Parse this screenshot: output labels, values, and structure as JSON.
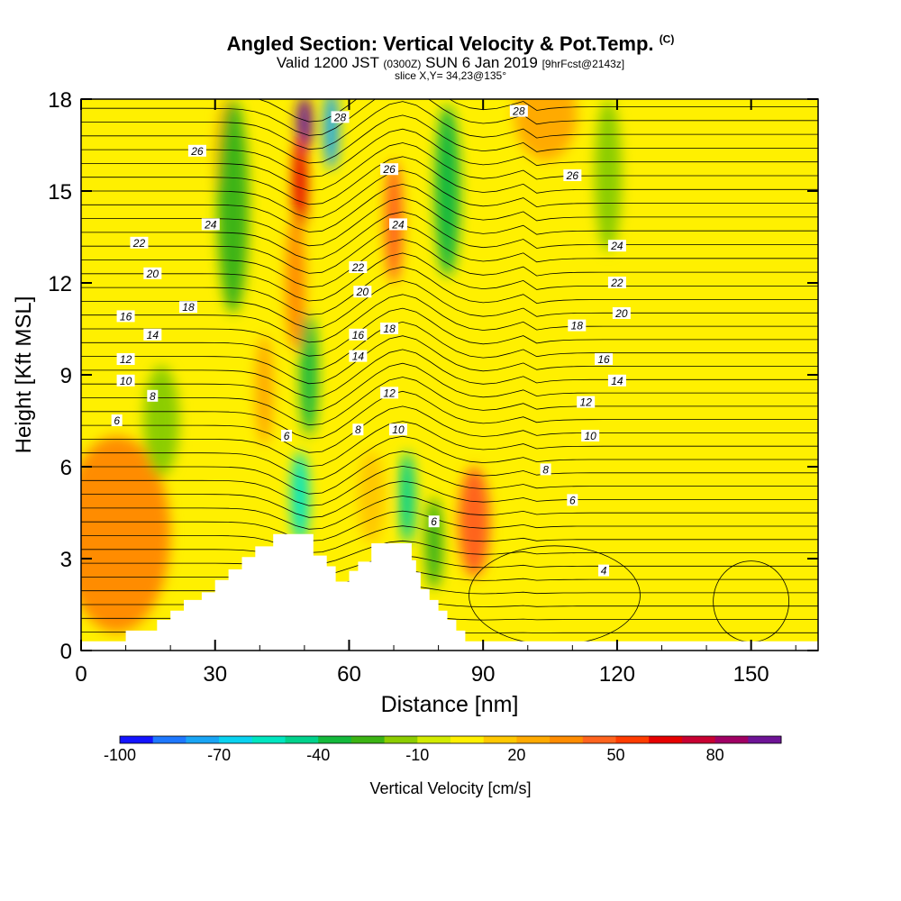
{
  "header": {
    "title": "Angled Section: Vertical Velocity & Pot.Temp.",
    "title_mark": "(C)",
    "valid_main": "Valid 1200 JST",
    "valid_zulu": "(0300Z)",
    "valid_date": "SUN 6 Jan 2019",
    "valid_fcst": "[9hrFcst@2143z]",
    "slice": "slice X,Y= 34,23@135°"
  },
  "chart_data": {
    "type": "heatmap",
    "xlabel": "Distance [nm]",
    "ylabel": "Height [Kft MSL]",
    "xlim": [
      0,
      165
    ],
    "ylim": [
      0,
      18
    ],
    "x_ticks": [
      0,
      30,
      60,
      90,
      120,
      150
    ],
    "y_ticks": [
      0,
      3,
      6,
      9,
      12,
      15,
      18
    ],
    "colorbar": {
      "label": "Vertical Velocity [cm/s]",
      "tick_labels": [
        "-100",
        "-70",
        "-40",
        "-10",
        "20",
        "50",
        "80"
      ],
      "tick_values": [
        -100,
        -70,
        -40,
        -10,
        20,
        50,
        80
      ],
      "colors": [
        "#1414ff",
        "#1e78ff",
        "#19a5f5",
        "#0ad2f0",
        "#00e6c0",
        "#00d28c",
        "#14b93c",
        "#3cb414",
        "#8ccd00",
        "#d2eb00",
        "#fff000",
        "#ffc800",
        "#ffaa00",
        "#ff8c00",
        "#ff641e",
        "#ff3c00",
        "#e60000",
        "#c80032",
        "#a00064",
        "#6e1496"
      ]
    },
    "terrain_profile": {
      "x": [
        0,
        10,
        10,
        17,
        17,
        20,
        20,
        23,
        23,
        27,
        27,
        30,
        30,
        33,
        33,
        36,
        36,
        39,
        39,
        43,
        43,
        47,
        47,
        52,
        52,
        55,
        55,
        57,
        57,
        60,
        60,
        62,
        62,
        65,
        65,
        68,
        68,
        74,
        74,
        75,
        75,
        76,
        76,
        78,
        78,
        80,
        80,
        82,
        82,
        84,
        84,
        86,
        86,
        90,
        90,
        165
      ],
      "height_kft": [
        0.3,
        0.3,
        0.65,
        0.65,
        1.0,
        1.0,
        1.3,
        1.3,
        1.65,
        1.65,
        1.9,
        1.9,
        2.3,
        2.3,
        2.65,
        2.65,
        3.05,
        3.05,
        3.4,
        3.4,
        3.8,
        3.8,
        3.8,
        3.8,
        3.1,
        3.1,
        2.75,
        2.75,
        2.25,
        2.25,
        2.6,
        2.6,
        2.9,
        2.9,
        3.5,
        3.5,
        3.5,
        3.5,
        2.95,
        2.95,
        2.55,
        2.55,
        2.0,
        2.0,
        1.65,
        1.65,
        1.3,
        1.3,
        1.0,
        1.0,
        0.65,
        0.65,
        0.3,
        0.3,
        0.3,
        0.3
      ]
    },
    "velocity_features": [
      {
        "x": 8,
        "z": 3.8,
        "rx": 12,
        "rz": 3.2,
        "value": 30
      },
      {
        "x": 104,
        "z": 17.5,
        "rx": 7,
        "rz": 1.5,
        "value": 25
      },
      {
        "x": 33,
        "z": 16,
        "rx": 3,
        "rz": 2,
        "value": 25
      },
      {
        "x": 18,
        "z": 7.5,
        "rx": 4,
        "rz": 1.8,
        "value": -15
      },
      {
        "x": 118,
        "z": 15.5,
        "rx": 3,
        "rz": 2.5,
        "value": -20
      },
      {
        "x": 34,
        "z": 14.5,
        "rx": 3.5,
        "rz": 3.5,
        "value": -30
      },
      {
        "x": 88,
        "z": 4.2,
        "rx": 3.5,
        "rz": 1.8,
        "value": 40
      },
      {
        "x": 82,
        "z": 15.0,
        "rx": 2.8,
        "rz": 2.8,
        "value": -40
      },
      {
        "x": 50,
        "z": 17.2,
        "rx": 1.8,
        "rz": 0.9,
        "value": 90
      },
      {
        "x": 49,
        "z": 15.2,
        "rx": 1.6,
        "rz": 1.6,
        "value": 60
      },
      {
        "x": 70,
        "z": 14.0,
        "rx": 2.0,
        "rz": 2.0,
        "value": 45
      },
      {
        "x": 48,
        "z": 12.0,
        "rx": 2.2,
        "rz": 2.2,
        "value": 30
      },
      {
        "x": 56,
        "z": 17.0,
        "rx": 1.6,
        "rz": 1.3,
        "value": -80
      },
      {
        "x": 51,
        "z": 9.0,
        "rx": 2.0,
        "rz": 2.0,
        "value": -35
      },
      {
        "x": 49,
        "z": 5.0,
        "rx": 2.0,
        "rz": 1.5,
        "value": -55
      },
      {
        "x": 73,
        "z": 5.0,
        "rx": 1.8,
        "rz": 1.5,
        "value": -50
      },
      {
        "x": 65,
        "z": 5.0,
        "rx": 3.0,
        "rz": 1.5,
        "value": 15
      },
      {
        "x": 79,
        "z": 3.5,
        "rx": 2.0,
        "rz": 1.5,
        "value": -30
      },
      {
        "x": 41,
        "z": 8.5,
        "rx": 2.0,
        "rz": 1.8,
        "value": 25
      }
    ],
    "isentrope_labels": [
      {
        "x": 98,
        "z": 17.6,
        "text": "28"
      },
      {
        "x": 58,
        "z": 17.4,
        "text": "28"
      },
      {
        "x": 26,
        "z": 16.3,
        "text": "26"
      },
      {
        "x": 69,
        "z": 15.7,
        "text": "26"
      },
      {
        "x": 110,
        "z": 15.5,
        "text": "26"
      },
      {
        "x": 29,
        "z": 13.9,
        "text": "24"
      },
      {
        "x": 71,
        "z": 13.9,
        "text": "24"
      },
      {
        "x": 120,
        "z": 13.2,
        "text": "24"
      },
      {
        "x": 13,
        "z": 13.3,
        "text": "22"
      },
      {
        "x": 62,
        "z": 12.5,
        "text": "22"
      },
      {
        "x": 120,
        "z": 12.0,
        "text": "22"
      },
      {
        "x": 16,
        "z": 12.3,
        "text": "20"
      },
      {
        "x": 63,
        "z": 11.7,
        "text": "20"
      },
      {
        "x": 121,
        "z": 11.0,
        "text": "20"
      },
      {
        "x": 10,
        "z": 10.9,
        "text": "16"
      },
      {
        "x": 24,
        "z": 11.2,
        "text": "18"
      },
      {
        "x": 69,
        "z": 10.5,
        "text": "18"
      },
      {
        "x": 111,
        "z": 10.6,
        "text": "18"
      },
      {
        "x": 62,
        "z": 10.3,
        "text": "16"
      },
      {
        "x": 117,
        "z": 9.5,
        "text": "16"
      },
      {
        "x": 16,
        "z": 10.3,
        "text": "14"
      },
      {
        "x": 62,
        "z": 9.6,
        "text": "14"
      },
      {
        "x": 120,
        "z": 8.8,
        "text": "14"
      },
      {
        "x": 10,
        "z": 9.5,
        "text": "12"
      },
      {
        "x": 69,
        "z": 8.4,
        "text": "12"
      },
      {
        "x": 113,
        "z": 8.1,
        "text": "12"
      },
      {
        "x": 10,
        "z": 8.8,
        "text": "10"
      },
      {
        "x": 71,
        "z": 7.2,
        "text": "10"
      },
      {
        "x": 114,
        "z": 7.0,
        "text": "10"
      },
      {
        "x": 16,
        "z": 8.3,
        "text": "8"
      },
      {
        "x": 62,
        "z": 7.2,
        "text": "8"
      },
      {
        "x": 104,
        "z": 5.9,
        "text": "8"
      },
      {
        "x": 8,
        "z": 7.5,
        "text": "6"
      },
      {
        "x": 46,
        "z": 7.0,
        "text": "6"
      },
      {
        "x": 79,
        "z": 4.2,
        "text": "6"
      },
      {
        "x": 110,
        "z": 4.9,
        "text": "6"
      },
      {
        "x": 117,
        "z": 2.6,
        "text": "4"
      }
    ]
  }
}
